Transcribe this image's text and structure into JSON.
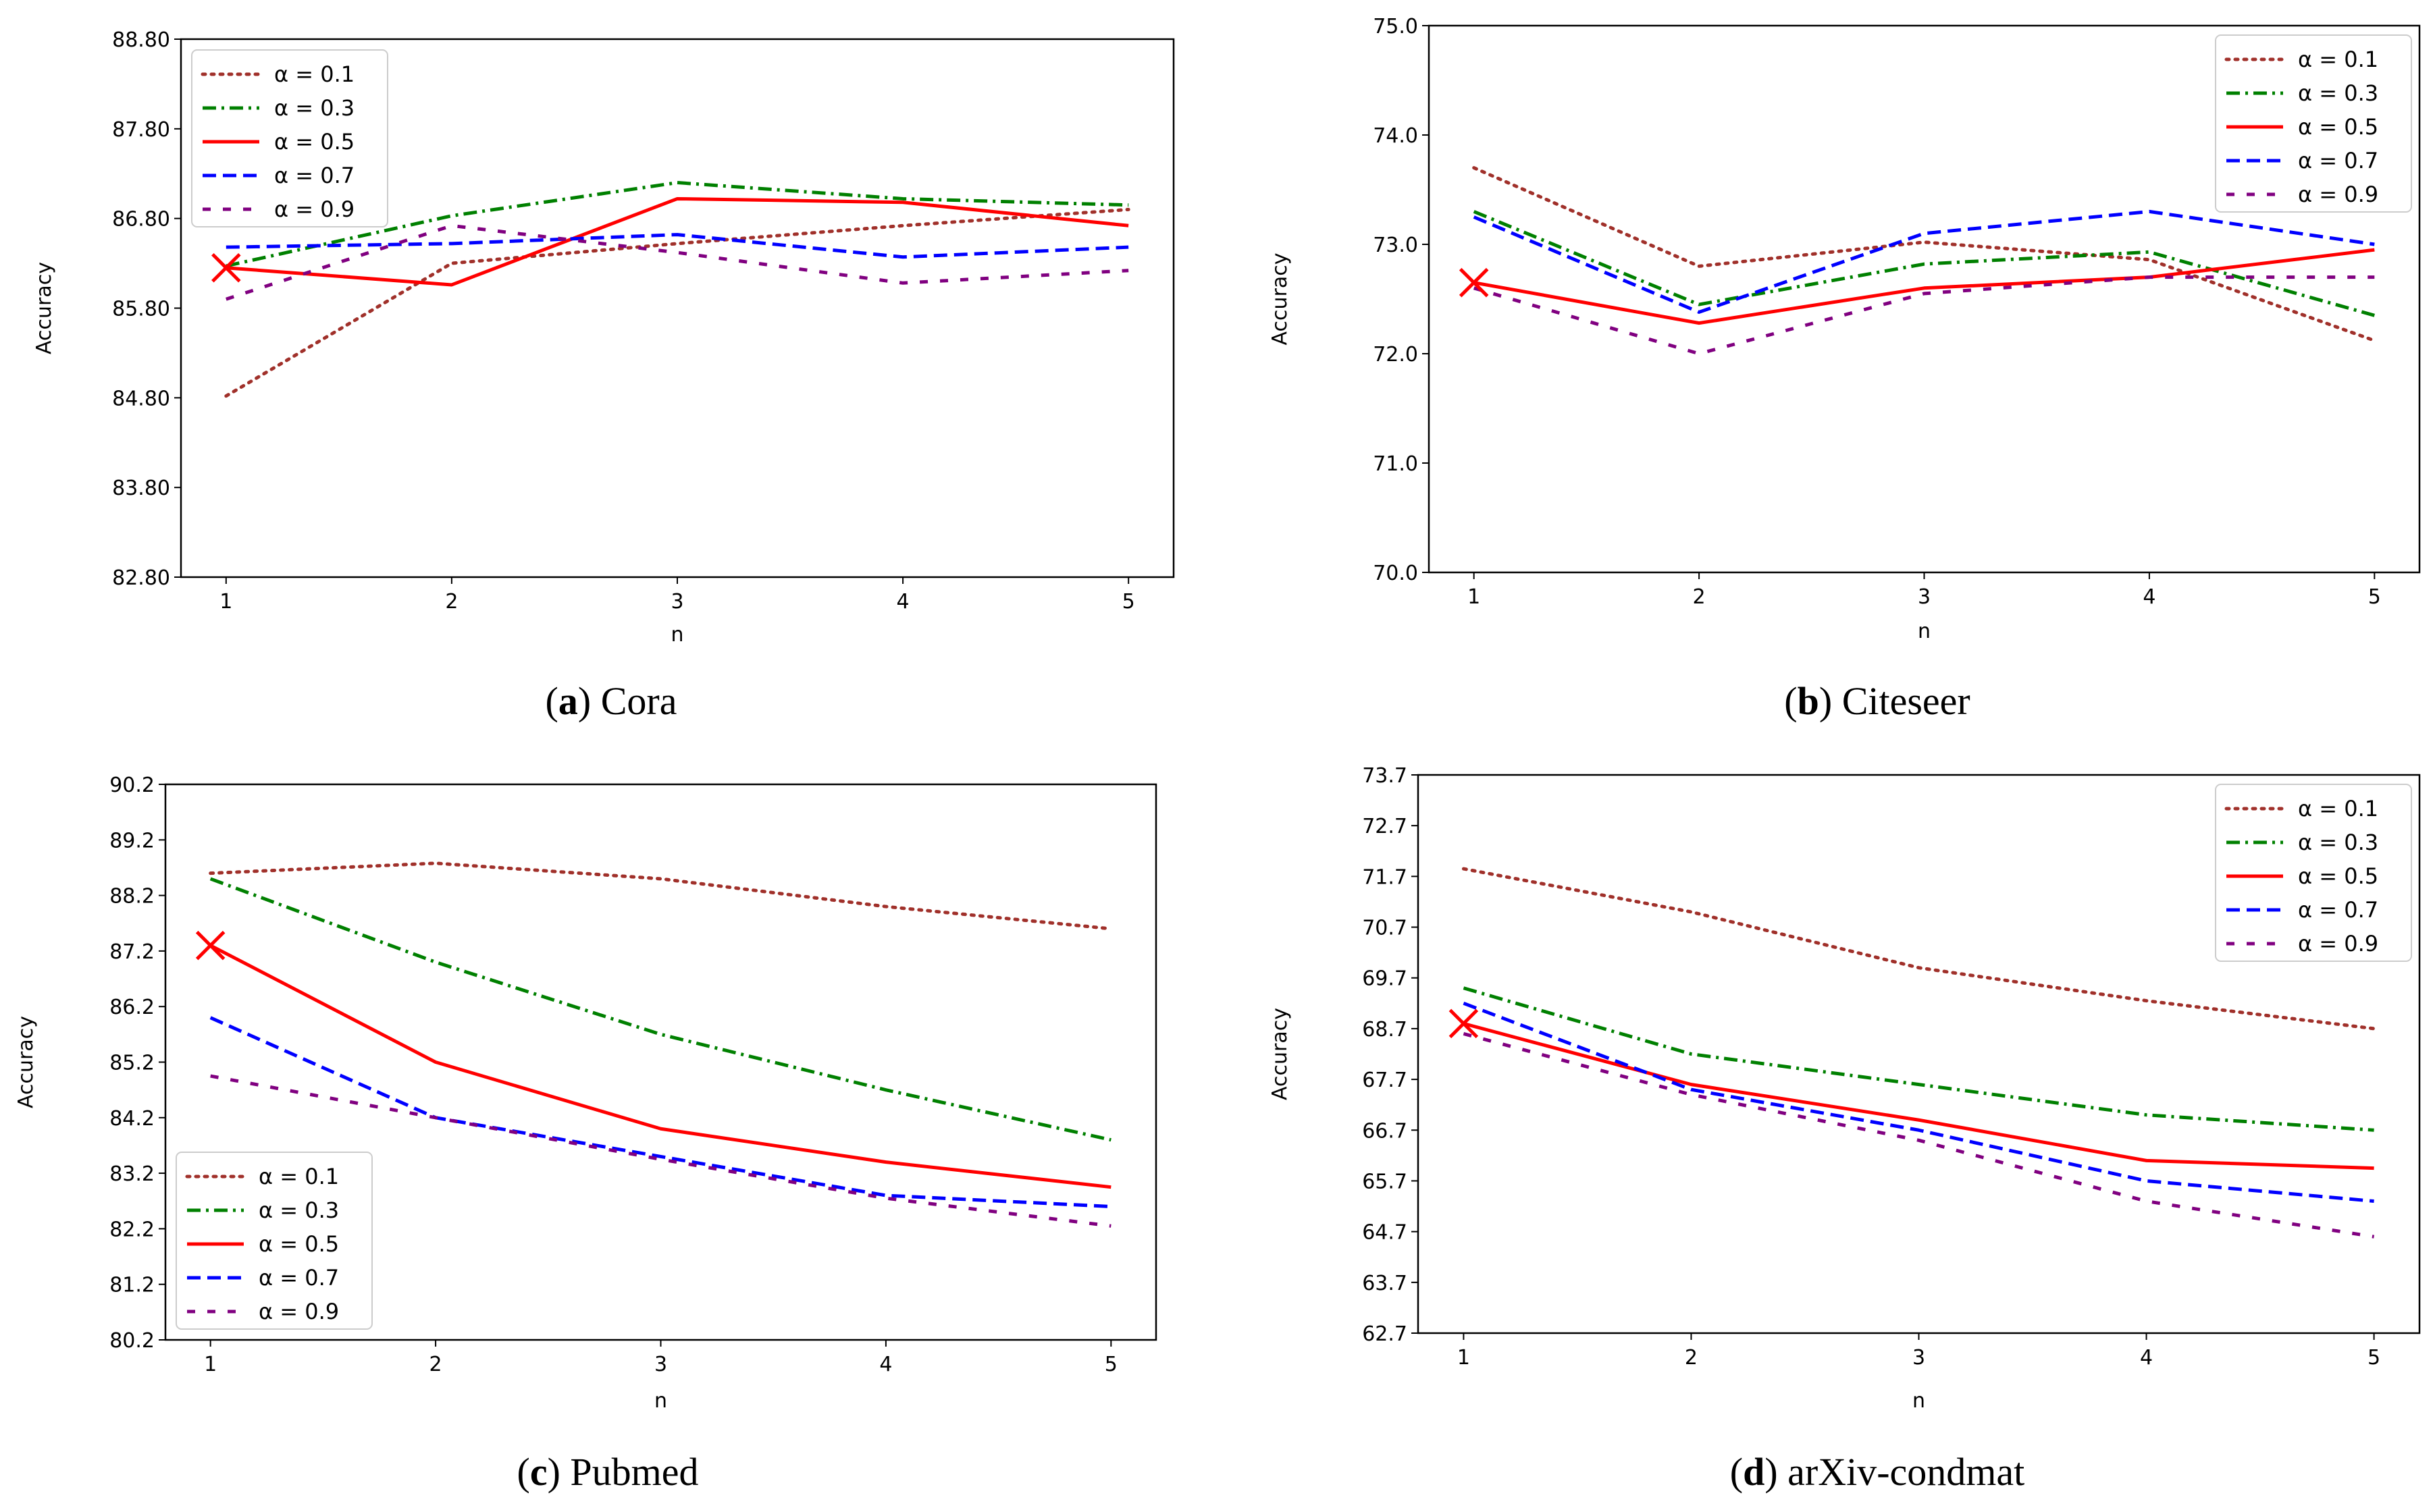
{
  "figure": {
    "series_styles": [
      {
        "name": "α = 0.1",
        "color": "#a0302a",
        "dash": "dotted"
      },
      {
        "name": "α = 0.3",
        "color": "#008000",
        "dash": "dashdot"
      },
      {
        "name": "α = 0.5",
        "color": "#ff0000",
        "dash": "solid"
      },
      {
        "name": "α = 0.7",
        "color": "#0000ff",
        "dash": "dashed"
      },
      {
        "name": "α = 0.9",
        "color": "#800080",
        "dash": "loosedash"
      }
    ],
    "marker_color": "#ff0000"
  },
  "chart_data": [
    {
      "type": "line",
      "caption_letter": "a",
      "caption_text": "Cora",
      "x": [
        1,
        2,
        3,
        4,
        5
      ],
      "xlabel": "n",
      "ylabel": "Accuracy",
      "xlim": [
        0.8,
        5.2
      ],
      "ylim": [
        82.8,
        88.8
      ],
      "yticks": [
        "88.80",
        "87.80",
        "86.80",
        "85.80",
        "84.80",
        "83.80",
        "82.80"
      ],
      "xticks": [
        "1",
        "2",
        "3",
        "4",
        "5"
      ],
      "legend_position": "top-left",
      "series": [
        {
          "name": "α = 0.1",
          "values": [
            84.82,
            86.3,
            86.52,
            86.72,
            86.9
          ]
        },
        {
          "name": "α = 0.3",
          "values": [
            86.27,
            86.83,
            87.2,
            87.02,
            86.95
          ]
        },
        {
          "name": "α = 0.5",
          "values": [
            86.25,
            86.06,
            87.02,
            86.98,
            86.72
          ]
        },
        {
          "name": "α = 0.7",
          "values": [
            86.48,
            86.52,
            86.62,
            86.37,
            86.48
          ]
        },
        {
          "name": "α = 0.9",
          "values": [
            85.9,
            86.72,
            86.42,
            86.08,
            86.22
          ]
        }
      ],
      "marker": {
        "x": 1,
        "y": 86.25
      }
    },
    {
      "type": "line",
      "caption_letter": "b",
      "caption_text": "Citeseer",
      "x": [
        1,
        2,
        3,
        4,
        5
      ],
      "xlabel": "n",
      "ylabel": "Accuracy",
      "xlim": [
        0.8,
        5.2
      ],
      "ylim": [
        70.0,
        75.0
      ],
      "yticks": [
        "75.0",
        "74.0",
        "73.0",
        "72.0",
        "71.0",
        "70.0"
      ],
      "xticks": [
        "1",
        "2",
        "3",
        "4",
        "5"
      ],
      "legend_position": "top-right",
      "series": [
        {
          "name": "α = 0.1",
          "values": [
            73.7,
            72.8,
            73.02,
            72.86,
            72.12
          ]
        },
        {
          "name": "α = 0.3",
          "values": [
            73.3,
            72.45,
            72.82,
            72.93,
            72.35
          ]
        },
        {
          "name": "α = 0.5",
          "values": [
            72.65,
            72.28,
            72.6,
            72.7,
            72.95
          ]
        },
        {
          "name": "α = 0.7",
          "values": [
            73.25,
            72.38,
            73.1,
            73.3,
            73.0
          ]
        },
        {
          "name": "α = 0.9",
          "values": [
            72.6,
            72.0,
            72.55,
            72.7,
            72.7
          ]
        }
      ],
      "marker": {
        "x": 1,
        "y": 72.65
      }
    },
    {
      "type": "line",
      "caption_letter": "c",
      "caption_text": "Pubmed",
      "x": [
        1,
        2,
        3,
        4,
        5
      ],
      "xlabel": "n",
      "ylabel": "Accuracy",
      "xlim": [
        0.8,
        5.2
      ],
      "ylim": [
        80.2,
        90.2
      ],
      "yticks": [
        "90.2",
        "89.2",
        "88.2",
        "87.2",
        "86.2",
        "85.2",
        "84.2",
        "83.2",
        "82.2",
        "81.2",
        "80.2"
      ],
      "xticks": [
        "1",
        "2",
        "3",
        "4",
        "5"
      ],
      "legend_position": "bottom-left",
      "series": [
        {
          "name": "α = 0.1",
          "values": [
            88.6,
            88.78,
            88.5,
            88.0,
            87.6
          ]
        },
        {
          "name": "α = 0.3",
          "values": [
            88.5,
            87.0,
            85.7,
            84.7,
            83.8
          ]
        },
        {
          "name": "α = 0.5",
          "values": [
            87.3,
            85.2,
            84.0,
            83.4,
            82.95
          ]
        },
        {
          "name": "α = 0.7",
          "values": [
            86.0,
            84.2,
            83.5,
            82.8,
            82.6
          ]
        },
        {
          "name": "α = 0.9",
          "values": [
            84.95,
            84.2,
            83.45,
            82.75,
            82.25
          ]
        }
      ],
      "marker": {
        "x": 1,
        "y": 87.3
      }
    },
    {
      "type": "line",
      "caption_letter": "d",
      "caption_text": "arXiv-condmat",
      "x": [
        1,
        2,
        3,
        4,
        5
      ],
      "xlabel": "n",
      "ylabel": "Accuracy",
      "xlim": [
        0.8,
        5.2
      ],
      "ylim": [
        62.7,
        73.7
      ],
      "yticks": [
        "73.7",
        "72.7",
        "71.7",
        "70.7",
        "69.7",
        "68.7",
        "67.7",
        "66.7",
        "65.7",
        "64.7",
        "63.7",
        "62.7"
      ],
      "xticks": [
        "1",
        "2",
        "3",
        "4",
        "5"
      ],
      "legend_position": "top-right",
      "series": [
        {
          "name": "α = 0.1",
          "values": [
            71.85,
            71.0,
            69.9,
            69.25,
            68.7
          ]
        },
        {
          "name": "α = 0.3",
          "values": [
            69.5,
            68.2,
            67.6,
            67.0,
            66.7
          ]
        },
        {
          "name": "α = 0.5",
          "values": [
            68.8,
            67.6,
            66.9,
            66.1,
            65.95
          ]
        },
        {
          "name": "α = 0.7",
          "values": [
            69.2,
            67.5,
            66.7,
            65.7,
            65.3
          ]
        },
        {
          "name": "α = 0.9",
          "values": [
            68.6,
            67.4,
            66.5,
            65.3,
            64.6
          ]
        }
      ],
      "marker": {
        "x": 1,
        "y": 68.8
      }
    }
  ]
}
